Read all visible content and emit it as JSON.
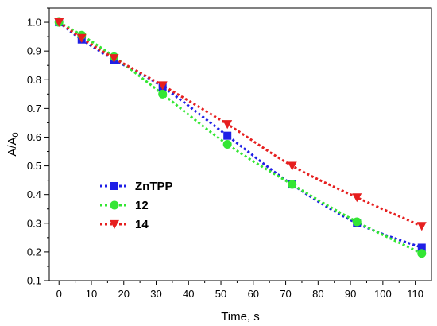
{
  "chart_data": {
    "type": "scatter",
    "xlabel": "Time, s",
    "ylabel_main": "A/A",
    "ylabel_sub": "0",
    "xlim": [
      -3,
      115
    ],
    "ylim": [
      0.1,
      1.05
    ],
    "xticks": [
      0,
      10,
      20,
      30,
      40,
      50,
      60,
      70,
      80,
      90,
      100,
      110
    ],
    "yticks": [
      0.1,
      0.2,
      0.3,
      0.4,
      0.5,
      0.6,
      0.7,
      0.8,
      0.9,
      1.0
    ],
    "ytick_labels": [
      "0.1",
      "0.2",
      "0.3",
      "0.4",
      "0.5",
      "0.6",
      "0.7",
      "0.8",
      "0.9",
      "1.0"
    ],
    "grid": false,
    "legend_position": "lower-left",
    "series": [
      {
        "name": "ZnTPP",
        "marker": "square",
        "color": "#1f1fe6",
        "x": [
          0,
          7,
          17,
          32,
          52,
          72,
          92,
          112
        ],
        "y": [
          1.0,
          0.94,
          0.87,
          0.775,
          0.605,
          0.435,
          0.3,
          0.215
        ]
      },
      {
        "name": "12",
        "marker": "circle",
        "color": "#33e633",
        "x": [
          0,
          7,
          17,
          32,
          52,
          72,
          92,
          112
        ],
        "y": [
          1.0,
          0.955,
          0.88,
          0.75,
          0.575,
          0.435,
          0.305,
          0.195
        ]
      },
      {
        "name": "14",
        "marker": "triangle-down",
        "color": "#e61f1f",
        "x": [
          0,
          7,
          17,
          32,
          52,
          72,
          92,
          112
        ],
        "y": [
          1.0,
          0.945,
          0.875,
          0.78,
          0.645,
          0.5,
          0.39,
          0.29
        ]
      }
    ]
  }
}
